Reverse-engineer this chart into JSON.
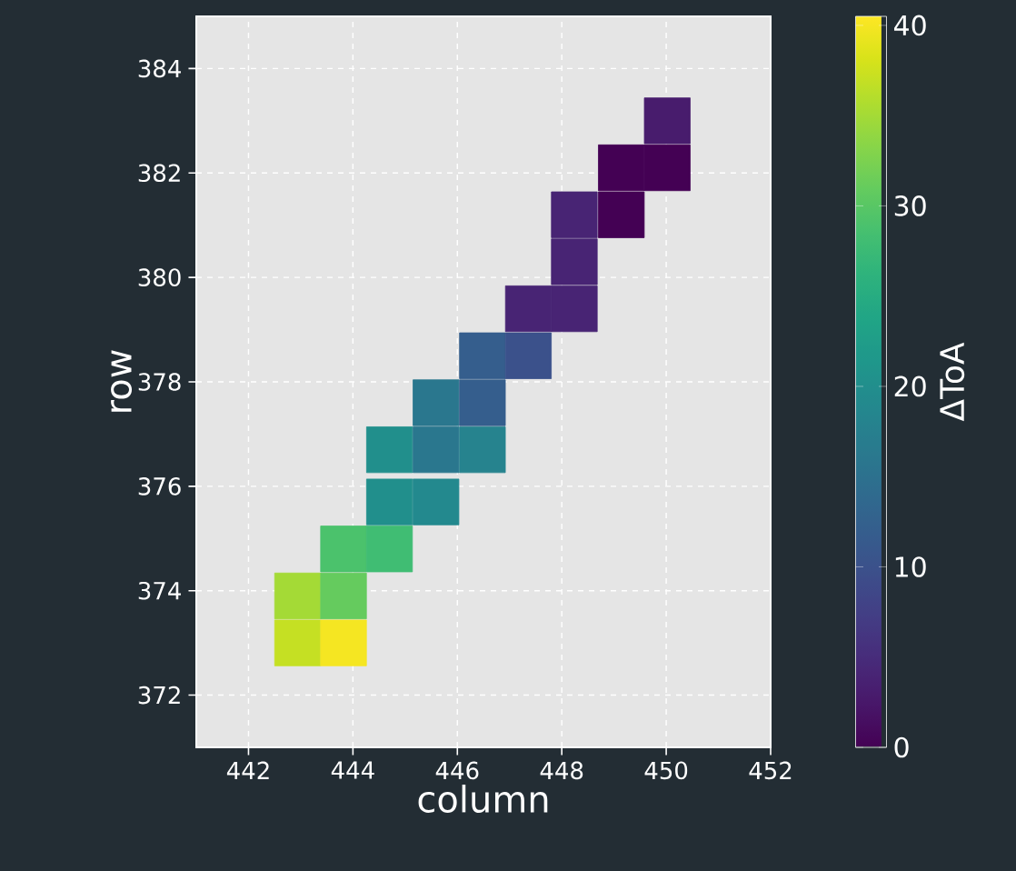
{
  "chart_data": {
    "type": "scatter",
    "xlabel": "column",
    "ylabel": "row",
    "clabel": "ΔToA",
    "marker": "square",
    "grid": true,
    "x": [
      450.02,
      449.14,
      450.02,
      448.24,
      449.14,
      448.24,
      447.36,
      448.24,
      446.48,
      447.36,
      445.59,
      446.48,
      444.7,
      445.59,
      446.48,
      444.7,
      445.59,
      443.82,
      444.7,
      442.94,
      443.82,
      442.94,
      443.82
    ],
    "values": [
      383.0,
      382.1,
      382.1,
      381.2,
      381.2,
      380.3,
      379.4,
      379.4,
      378.5,
      378.5,
      377.6,
      377.6,
      376.7,
      376.7,
      376.7,
      375.7,
      375.7,
      374.8,
      374.8,
      373.9,
      373.9,
      373.0,
      373.0
    ],
    "cvalues": [
      3,
      0,
      0,
      4,
      0,
      4,
      4,
      4,
      12,
      10,
      16,
      12,
      20,
      16,
      18,
      20,
      19,
      29,
      28,
      35,
      31,
      37,
      40
    ],
    "xlim": [
      441,
      452
    ],
    "ylim": [
      371,
      385
    ],
    "xticks": [
      442,
      444,
      446,
      448,
      450,
      452
    ],
    "yticks": [
      372,
      374,
      376,
      378,
      380,
      382,
      384
    ],
    "clim": [
      0,
      40.5
    ],
    "cticks": [
      0,
      10,
      20,
      30,
      40
    ]
  }
}
